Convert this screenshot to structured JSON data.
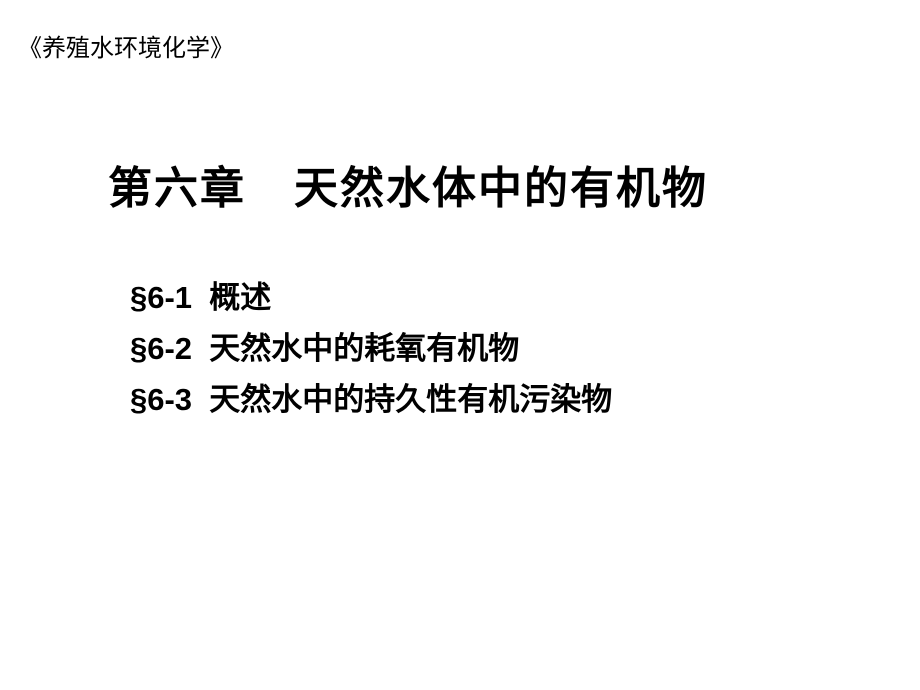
{
  "book_title": "《养殖水环境化学》",
  "chapter": {
    "number": "第六章",
    "name": "天然水体中的有机物"
  },
  "sections": [
    {
      "label": "§6-1",
      "title": "概述"
    },
    {
      "label": "§6-2",
      "title": "天然水中的耗氧有机物"
    },
    {
      "label": "§6-3",
      "title": "天然水中的持久性有机污染物"
    }
  ],
  "colors": {
    "background": "#ffffff",
    "text": "#000000"
  },
  "typography": {
    "book_title_fontsize": 24,
    "chapter_title_fontsize": 44,
    "section_fontsize": 31,
    "font_family": "SimHei"
  }
}
